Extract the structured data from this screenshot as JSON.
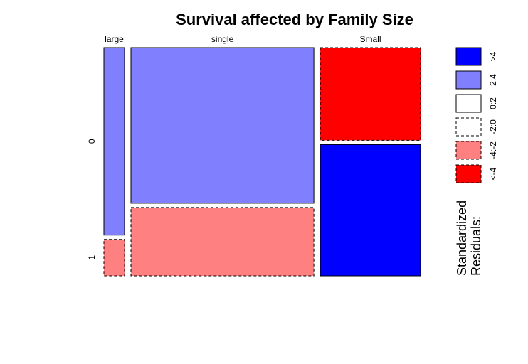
{
  "chart_data": {
    "type": "mosaic",
    "title": "Survival affected by Family Size",
    "column_variable_levels": [
      "large",
      "single",
      "Small"
    ],
    "row_variable_levels": [
      "0",
      "1"
    ],
    "column_shares": [
      0.068,
      0.602,
      0.33
    ],
    "row_shares_within_column": [
      [
        0.837,
        0.163
      ],
      [
        0.695,
        0.305
      ],
      [
        0.414,
        0.586
      ]
    ],
    "cell_residual_class": [
      [
        "2:4",
        "-4:-2"
      ],
      [
        "2:4",
        "-4:-2"
      ],
      [
        "<-4",
        ">4"
      ]
    ],
    "legend": {
      "title_line1": "Standardized",
      "title_line2": "Residuals:",
      "items": [
        {
          "label": ">4",
          "color": "#0000FF",
          "dashed": false
        },
        {
          "label": "2:4",
          "color": "#8080FF",
          "dashed": false
        },
        {
          "label": "0:2",
          "color": "#FFFFFF",
          "dashed": false
        },
        {
          "label": "-2:0",
          "color": "#FFFFFF",
          "dashed": true
        },
        {
          "label": "-4:-2",
          "color": "#FF8080",
          "dashed": true
        },
        {
          "label": "<-4",
          "color": "#FF0000",
          "dashed": true
        }
      ]
    }
  }
}
